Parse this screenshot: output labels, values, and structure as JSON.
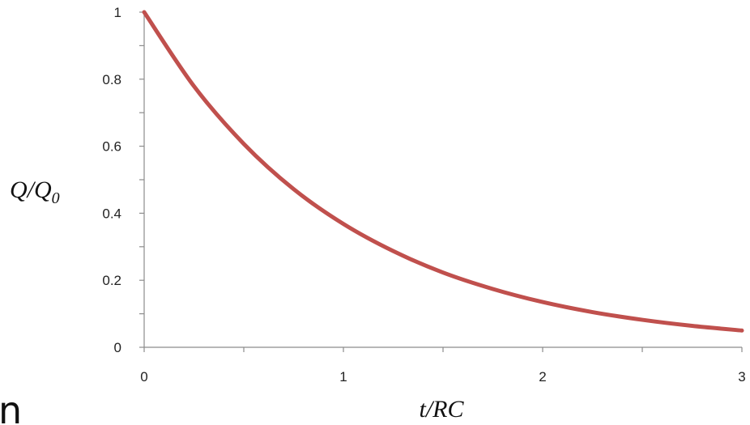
{
  "chart_data": {
    "type": "line",
    "title": "",
    "xlabel": "t/RC",
    "ylabel": {
      "main": "Q/Q",
      "subscript": "0"
    },
    "xlim": [
      0,
      3
    ],
    "ylim": [
      0,
      1
    ],
    "x_ticks": [
      "0",
      "1",
      "2",
      "3"
    ],
    "y_ticks": [
      "0",
      "0.2",
      "0.4",
      "0.6",
      "0.8",
      "1"
    ],
    "x_minor_step": 0.5,
    "y_minor_step": 0.1,
    "grid": false,
    "series": [
      {
        "color": "#c0504d",
        "x": [
          0,
          0.25,
          0.5,
          0.75,
          1,
          1.25,
          1.5,
          1.75,
          2,
          2.25,
          2.5,
          2.75,
          3
        ],
        "y": [
          1,
          0.779,
          0.607,
          0.472,
          0.368,
          0.287,
          0.223,
          0.174,
          0.135,
          0.105,
          0.082,
          0.064,
          0.05
        ]
      }
    ]
  },
  "edge_fragment": "n"
}
